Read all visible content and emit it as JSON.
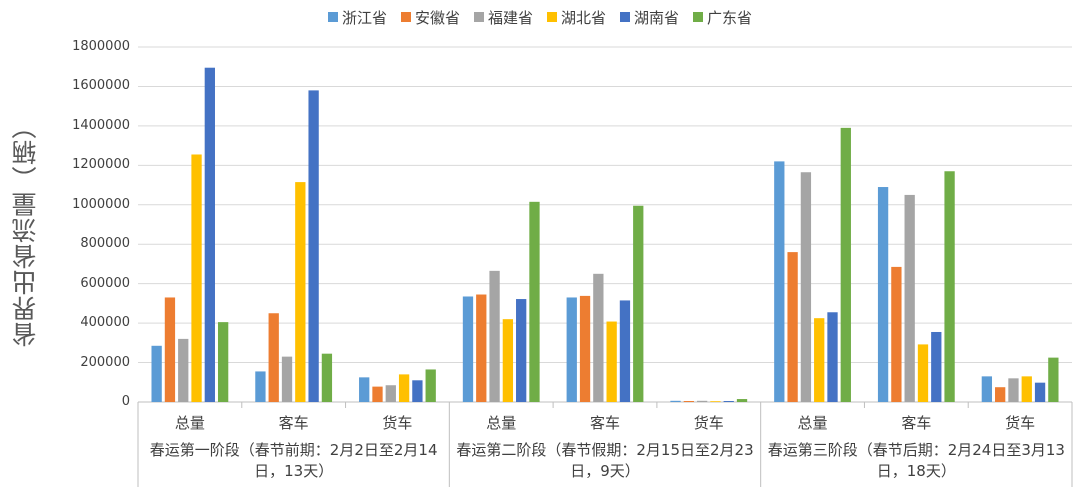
{
  "chart_data": {
    "type": "bar",
    "ylabel": "省界出省流量（辆）",
    "ylim": [
      0,
      1800000
    ],
    "yticks": [
      "0",
      "200000",
      "400000",
      "600000",
      "800000",
      "1000000",
      "1200000",
      "1400000",
      "1600000",
      "1800000"
    ],
    "legend_position": "top",
    "grid": true,
    "categories": [
      "总量",
      "客车",
      "货车",
      "总量",
      "客车",
      "货车",
      "总量",
      "客车",
      "货车"
    ],
    "groups": [
      {
        "label": "春运第一阶段（春节前期：2月2日至2月14日，13天）",
        "categories": 3
      },
      {
        "label": "春运第二阶段（春节假期：2月15日至2月23日，9天）",
        "categories": 3
      },
      {
        "label": "春运第三阶段（春节后期：2月24日至3月13日，18天）",
        "categories": 3
      }
    ],
    "series": [
      {
        "name": "浙江省",
        "color": "#5B9BD5",
        "values": [
          285000,
          155000,
          125000,
          535000,
          530000,
          6000,
          1220000,
          1090000,
          130000
        ]
      },
      {
        "name": "安徽省",
        "color": "#ED7D31",
        "values": [
          530000,
          450000,
          78000,
          545000,
          538000,
          5000,
          760000,
          685000,
          75000
        ]
      },
      {
        "name": "福建省",
        "color": "#A5A5A5",
        "values": [
          320000,
          230000,
          85000,
          665000,
          650000,
          6000,
          1165000,
          1050000,
          120000
        ]
      },
      {
        "name": "湖北省",
        "color": "#FFC000",
        "values": [
          1255000,
          1115000,
          140000,
          420000,
          408000,
          4000,
          425000,
          292000,
          130000
        ]
      },
      {
        "name": "湖南省",
        "color": "#4472C4",
        "values": [
          1695000,
          1580000,
          110000,
          522000,
          515000,
          5000,
          455000,
          355000,
          98000
        ]
      },
      {
        "name": "广东省",
        "color": "#70AD47",
        "values": [
          405000,
          245000,
          165000,
          1015000,
          995000,
          15000,
          1390000,
          1170000,
          225000
        ]
      }
    ]
  }
}
